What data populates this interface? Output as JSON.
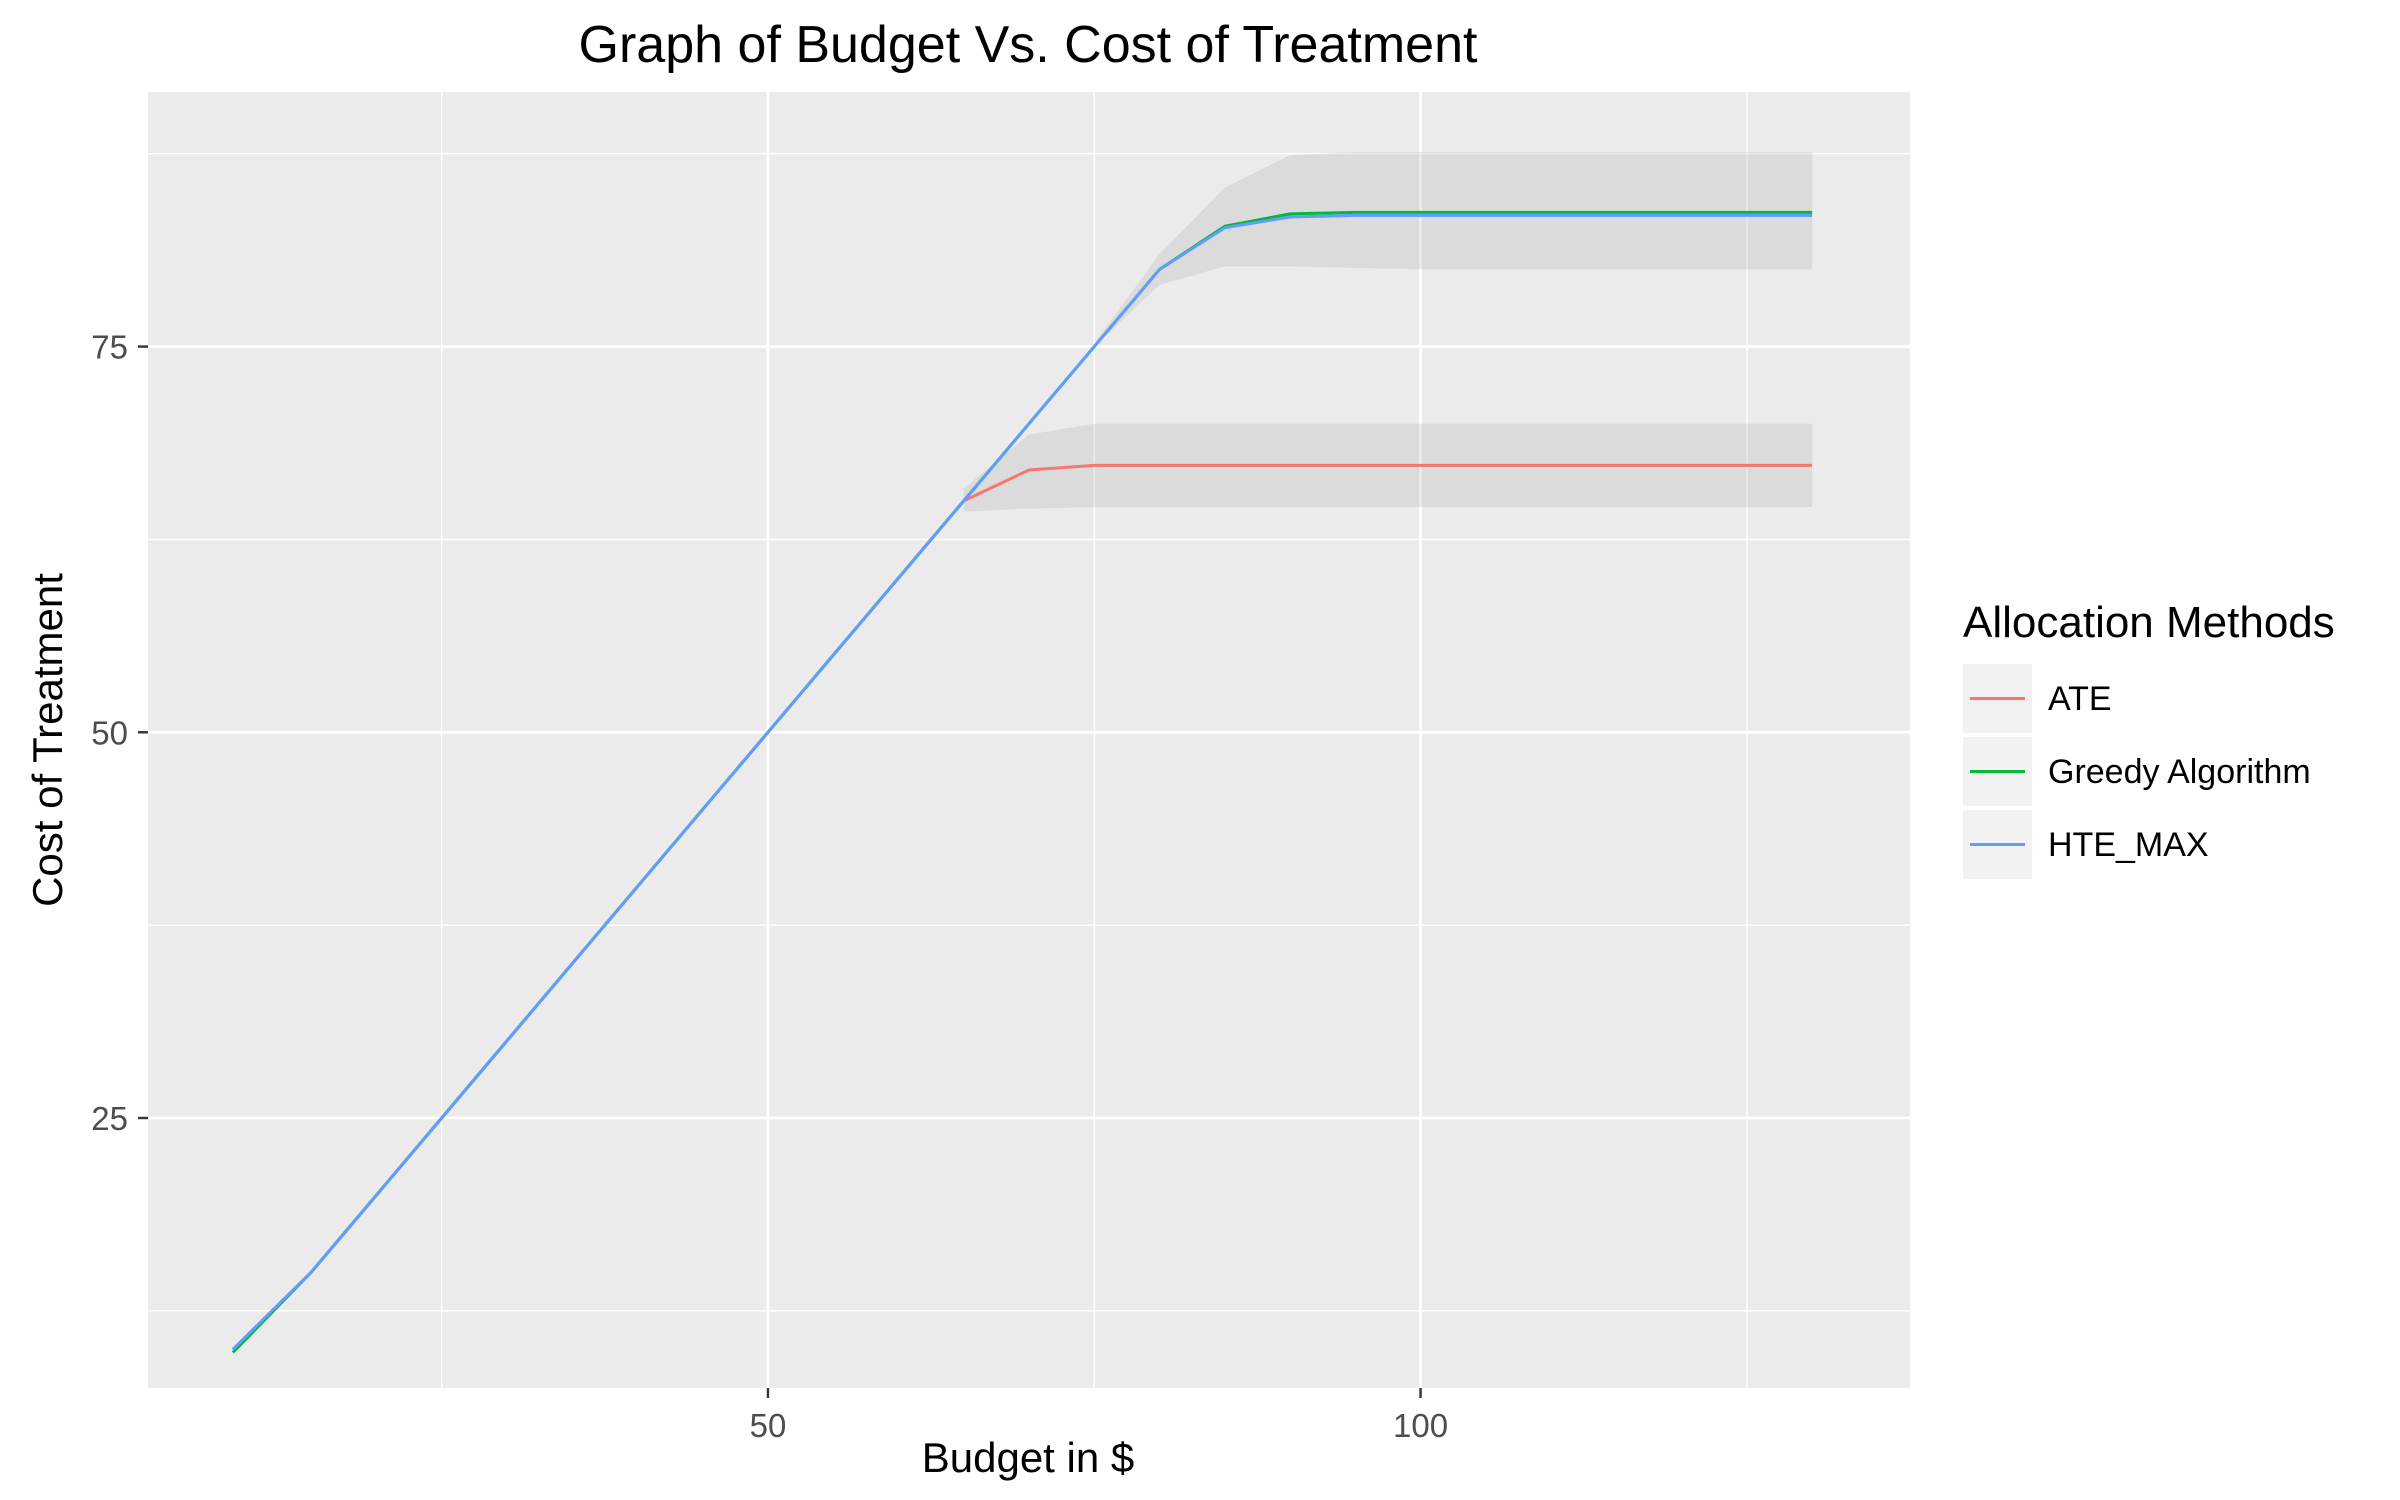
{
  "chart_data": {
    "type": "line",
    "title": "Graph of Budget Vs. Cost of Treatment",
    "xlabel": "Budget in $",
    "ylabel": "Cost of Treatment",
    "xlim": [
      2.5,
      137.5
    ],
    "ylim": [
      7.5,
      91.5
    ],
    "x_ticks": [
      50,
      100
    ],
    "x_minor_ticks": [
      25,
      75,
      125
    ],
    "y_ticks": [
      25,
      50,
      75
    ],
    "y_minor_ticks": [
      12.5,
      37.5,
      62.5,
      87.5
    ],
    "grid": true,
    "legend": {
      "title": "Allocation Methods",
      "position": "right",
      "entries": [
        "ATE",
        "Greedy Algorithm",
        "HTE_MAX"
      ]
    },
    "series": [
      {
        "name": "ATE",
        "color": "#F8766D",
        "x": [
          9,
          15,
          20,
          25,
          30,
          35,
          40,
          45,
          50,
          55,
          60,
          65,
          70,
          75,
          80,
          90,
          100,
          110,
          120,
          130
        ],
        "y": [
          10,
          15,
          20,
          25,
          30,
          35,
          40,
          45,
          50,
          55,
          60,
          65,
          67,
          67.3,
          67.3,
          67.3,
          67.3,
          67.3,
          67.3,
          67.3
        ],
        "band_lower": [
          null,
          null,
          null,
          null,
          null,
          null,
          null,
          null,
          null,
          null,
          null,
          64.3,
          64.5,
          64.6,
          64.6,
          64.6,
          64.6,
          64.6,
          64.6,
          64.6
        ],
        "band_upper": [
          null,
          null,
          null,
          null,
          null,
          null,
          null,
          null,
          null,
          null,
          null,
          65.8,
          69.3,
          70,
          70,
          70,
          70,
          70,
          70,
          70
        ]
      },
      {
        "name": "Greedy Algorithm",
        "color": "#00BA38",
        "x": [
          9,
          15,
          20,
          25,
          30,
          35,
          40,
          45,
          50,
          55,
          60,
          65,
          70,
          75,
          80,
          85,
          90,
          95,
          100,
          110,
          120,
          130
        ],
        "y": [
          9.8,
          15,
          20,
          25,
          30,
          35,
          40,
          45,
          50,
          55,
          60,
          65,
          70,
          75,
          80,
          82.8,
          83.6,
          83.7,
          83.7,
          83.7,
          83.7,
          83.7
        ],
        "band_lower": [
          null,
          null,
          null,
          null,
          null,
          null,
          null,
          null,
          null,
          null,
          null,
          null,
          null,
          75,
          79,
          80.2,
          80.2,
          80.1,
          80,
          80,
          80,
          80
        ],
        "band_upper": [
          null,
          null,
          null,
          null,
          null,
          null,
          null,
          null,
          null,
          null,
          null,
          null,
          null,
          75.2,
          81,
          85.3,
          87.4,
          87.6,
          87.6,
          87.6,
          87.6,
          87.6
        ]
      },
      {
        "name": "HTE_MAX",
        "color": "#619CFF",
        "x": [
          9,
          15,
          20,
          25,
          30,
          35,
          40,
          45,
          50,
          55,
          60,
          65,
          70,
          75,
          80,
          85,
          90,
          95,
          100,
          110,
          120,
          130
        ],
        "y": [
          10,
          15,
          20,
          25,
          30,
          35,
          40,
          45,
          50,
          55,
          60,
          65,
          70,
          75,
          80,
          82.7,
          83.4,
          83.5,
          83.5,
          83.5,
          83.5,
          83.5
        ]
      }
    ]
  }
}
